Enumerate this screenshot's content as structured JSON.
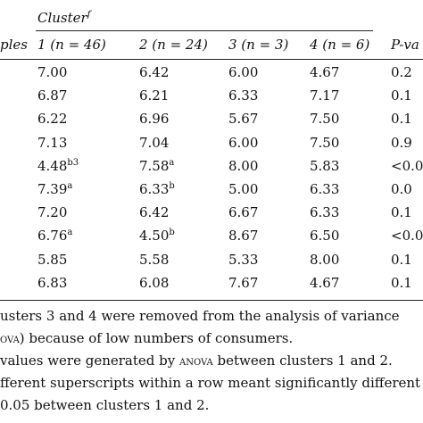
{
  "table": {
    "cluster_header": "Cluster",
    "cluster_superscript": "f",
    "samples_header": "ples",
    "columns": [
      {
        "label": "1 (n = 46)"
      },
      {
        "label": "2 (n = 24)"
      },
      {
        "label": "3 (n = 3)"
      },
      {
        "label": "4 (n = 6)"
      },
      {
        "label": "P-va"
      }
    ],
    "rows": [
      {
        "c1": "7.00",
        "c1_sup": "",
        "c2": "6.42",
        "c2_sup": "",
        "c3": "6.00",
        "c4": "4.67",
        "p": "0.2"
      },
      {
        "c1": "6.87",
        "c1_sup": "",
        "c2": "6.21",
        "c2_sup": "",
        "c3": "6.33",
        "c4": "7.17",
        "p": "0.1"
      },
      {
        "c1": "6.22",
        "c1_sup": "",
        "c2": "6.96",
        "c2_sup": "",
        "c3": "5.67",
        "c4": "7.50",
        "p": "0.1"
      },
      {
        "c1": "7.13",
        "c1_sup": "",
        "c2": "7.04",
        "c2_sup": "",
        "c3": "6.00",
        "c4": "7.50",
        "p": "0.9"
      },
      {
        "c1": "4.48",
        "c1_sup": "b3",
        "c2": "7.58",
        "c2_sup": "a",
        "c3": "8.00",
        "c4": "5.83",
        "p": "<0.0"
      },
      {
        "c1": "7.39",
        "c1_sup": "a",
        "c2": "6.33",
        "c2_sup": "b",
        "c3": "5.00",
        "c4": "6.33",
        "p": "0.0"
      },
      {
        "c1": "7.20",
        "c1_sup": "",
        "c2": "6.42",
        "c2_sup": "",
        "c3": "6.67",
        "c4": "6.33",
        "p": "0.1"
      },
      {
        "c1": "6.76",
        "c1_sup": "a",
        "c2": "4.50",
        "c2_sup": "b",
        "c3": "8.67",
        "c4": "6.50",
        "p": "<0.0"
      },
      {
        "c1": "5.85",
        "c1_sup": "",
        "c2": "5.58",
        "c2_sup": "",
        "c3": "5.33",
        "c4": "8.00",
        "p": "0.1"
      },
      {
        "c1": "6.83",
        "c1_sup": "",
        "c2": "6.08",
        "c2_sup": "",
        "c3": "7.67",
        "c4": "4.67",
        "p": "0.1"
      }
    ]
  },
  "notes": {
    "line1": "usters 3 and 4 were removed from the analysis of variance",
    "line2_sc": "ova",
    "line2_rest": ") because of low numbers of consumers.",
    "line3_pre": "values were generated by ",
    "line3_sc": "anova",
    "line3_post": " between clusters 1 and 2.",
    "line4": "fferent superscripts within a row meant significantly different",
    "line5": "0.05 between clusters 1 and 2."
  }
}
